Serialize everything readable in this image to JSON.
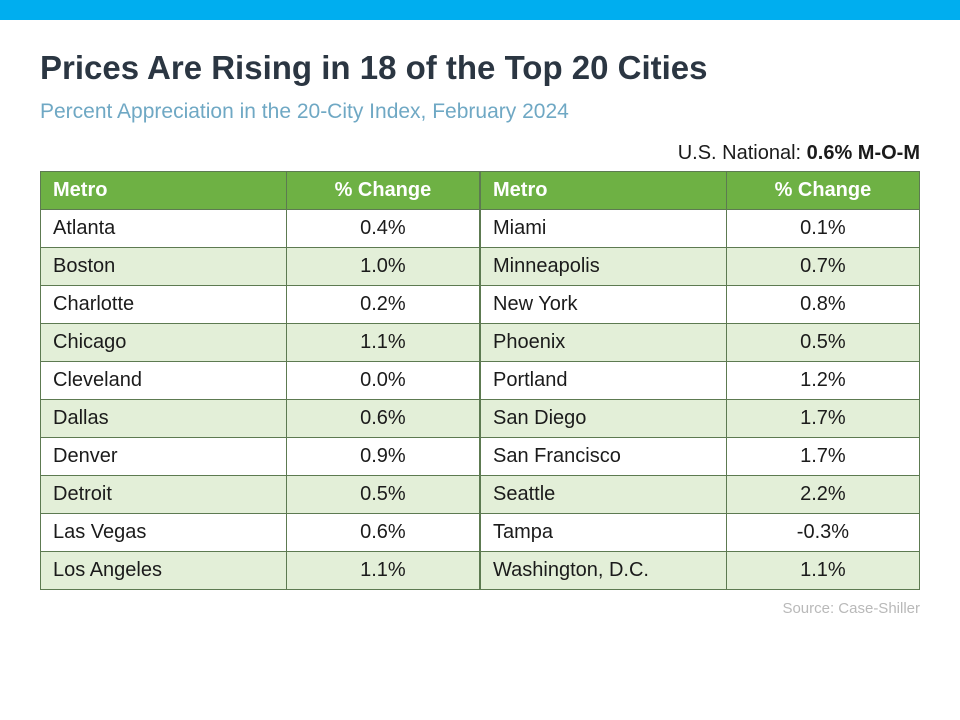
{
  "colors": {
    "top_bar": "#00aeef",
    "title": "#2b3642",
    "subtitle": "#6fa8c4",
    "header_bg": "#6eb144",
    "row_even_bg": "#ffffff",
    "row_odd_bg": "#e3efd8",
    "border": "#5d7a51",
    "text": "#1b1b1b",
    "source": "#b9b9b9"
  },
  "title": "Prices Are Rising in 18 of the Top 20 Cities",
  "subtitle": "Percent Appreciation in the 20-City Index, February 2024",
  "national": {
    "label": "U.S. National: ",
    "value": "0.6% M-O-M"
  },
  "table": {
    "columns": [
      "Metro",
      "% Change"
    ],
    "left_rows": [
      [
        "Atlanta",
        "0.4%"
      ],
      [
        "Boston",
        "1.0%"
      ],
      [
        "Charlotte",
        "0.2%"
      ],
      [
        "Chicago",
        "1.1%"
      ],
      [
        "Cleveland",
        "0.0%"
      ],
      [
        "Dallas",
        "0.6%"
      ],
      [
        "Denver",
        "0.9%"
      ],
      [
        "Detroit",
        "0.5%"
      ],
      [
        "Las Vegas",
        "0.6%"
      ],
      [
        "Los Angeles",
        "1.1%"
      ]
    ],
    "right_rows": [
      [
        "Miami",
        "0.1%"
      ],
      [
        "Minneapolis",
        "0.7%"
      ],
      [
        "New York",
        "0.8%"
      ],
      [
        "Phoenix",
        "0.5%"
      ],
      [
        "Portland",
        "1.2%"
      ],
      [
        "San Diego",
        "1.7%"
      ],
      [
        "San Francisco",
        "1.7%"
      ],
      [
        "Seattle",
        "2.2%"
      ],
      [
        "Tampa",
        "-0.3%"
      ],
      [
        "Washington, D.C.",
        "1.1%"
      ]
    ]
  },
  "source": "Source: Case-Shiller"
}
